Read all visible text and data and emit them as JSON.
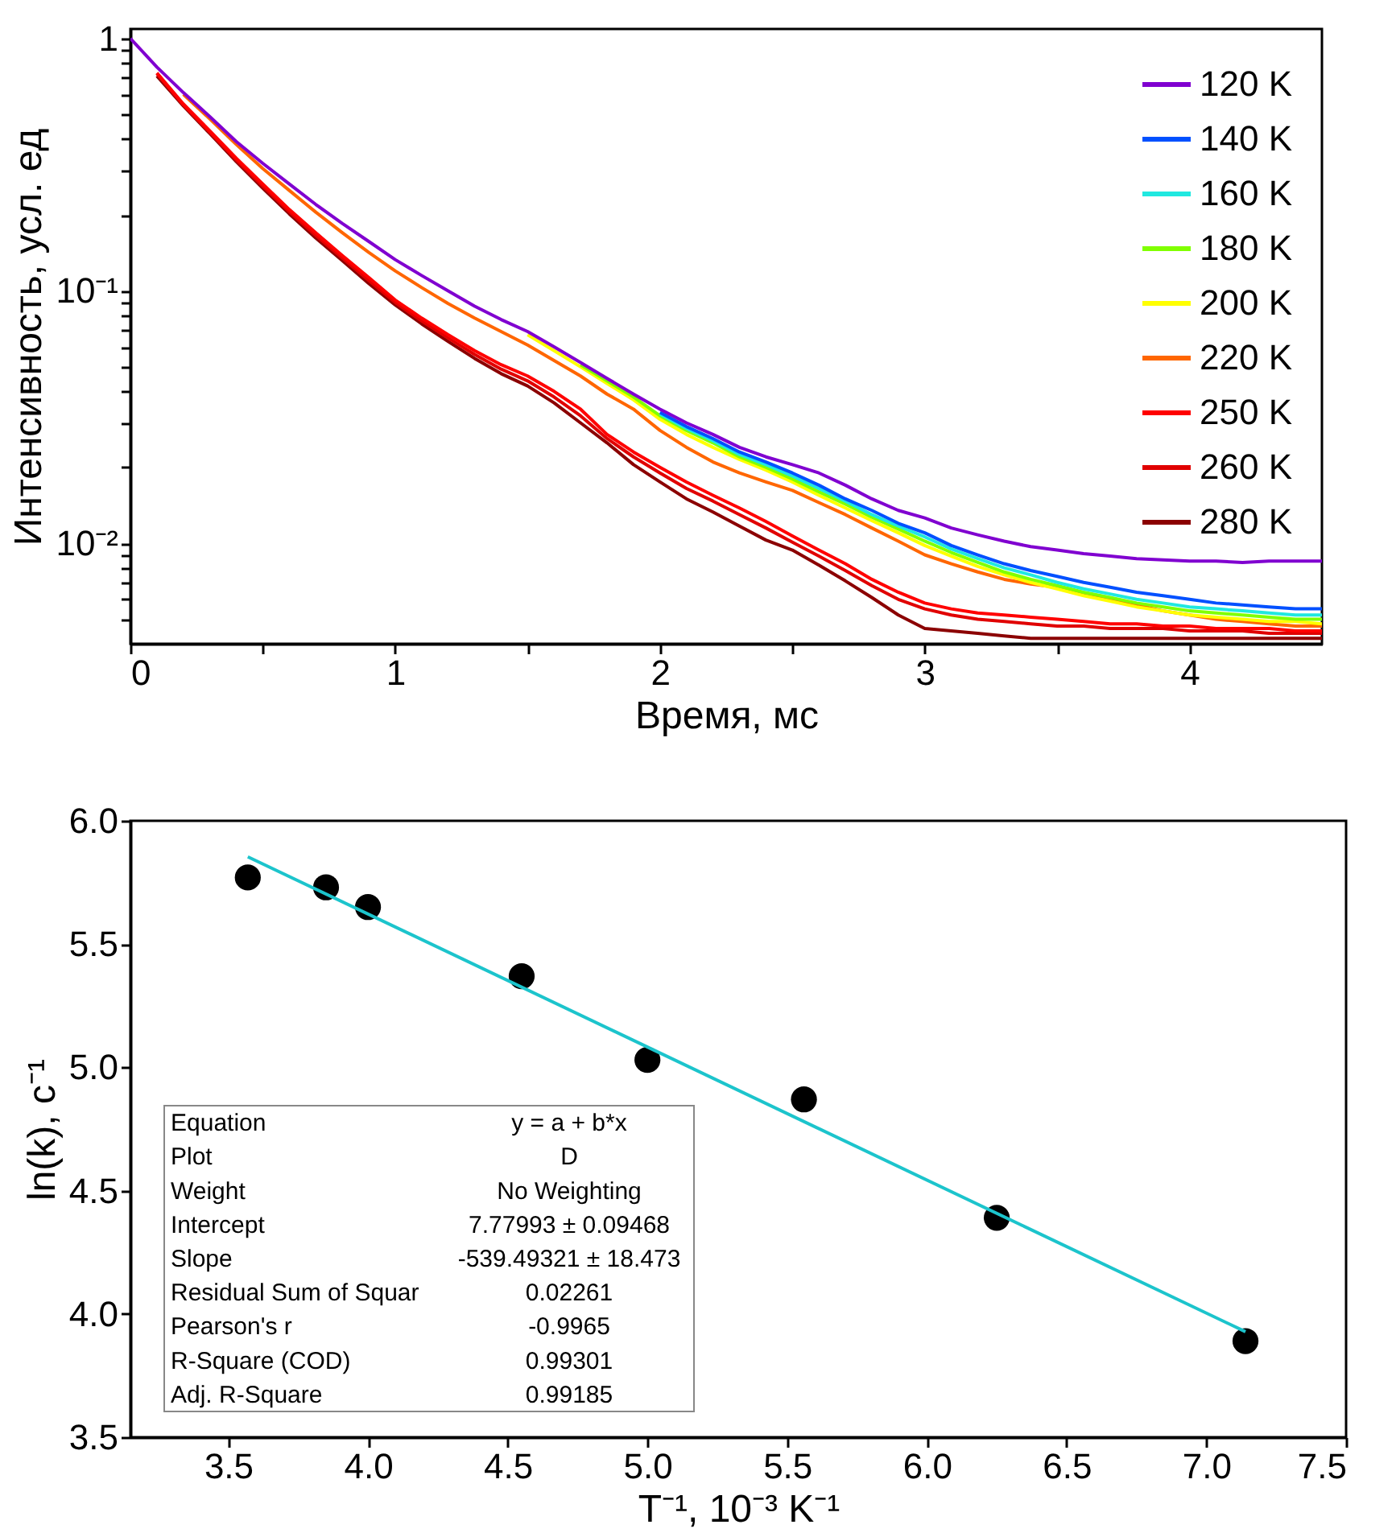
{
  "chart_data": [
    {
      "type": "line",
      "xlabel": "Время, мс",
      "ylabel": "Интенсивность, усл. ед",
      "log": "y",
      "legend": "top right",
      "grid": false,
      "xlim": [
        0,
        4.5
      ],
      "xticks": [
        0,
        1,
        2,
        3,
        4,
        {
          "value": 0.5,
          "label": null
        },
        {
          "value": 1.5,
          "label": null
        },
        {
          "value": 2.5,
          "label": null
        },
        {
          "value": 3.5,
          "label": null
        }
      ],
      "ylim": [
        0.004,
        1.09
      ],
      "yticks": [
        1,
        {
          "value": 0.1,
          "label": "10⁻¹"
        },
        {
          "value": 0.01,
          "label": "10⁻²"
        },
        {
          "value": 0.2,
          "label": null
        },
        {
          "value": 0.3,
          "label": null
        },
        {
          "value": 0.4,
          "label": null
        },
        {
          "value": 0.5,
          "label": null
        },
        {
          "value": 0.6,
          "label": null
        },
        {
          "value": 0.7,
          "label": null
        },
        {
          "value": 0.8,
          "label": null
        },
        {
          "value": 0.9,
          "label": null
        },
        {
          "value": 0.02,
          "label": null
        },
        {
          "value": 0.03,
          "label": null
        },
        {
          "value": 0.04,
          "label": null
        },
        {
          "value": 0.05,
          "label": null
        },
        {
          "value": 0.06,
          "label": null
        },
        {
          "value": 0.07,
          "label": null
        },
        {
          "value": 0.08,
          "label": null
        },
        {
          "value": 0.09,
          "label": null
        },
        {
          "value": 0.005,
          "label": null
        },
        {
          "value": 0.006,
          "label": null
        },
        {
          "value": 0.007,
          "label": null
        },
        {
          "value": 0.008,
          "label": null
        },
        {
          "value": 0.009,
          "label": null
        }
      ],
      "x": [
        0,
        0.1,
        0.2,
        0.3,
        0.4,
        0.5,
        0.6,
        0.7,
        0.8,
        0.9,
        1.0,
        1.1,
        1.2,
        1.3,
        1.4,
        1.5,
        1.6,
        1.7,
        1.8,
        1.9,
        2.0,
        2.1,
        2.2,
        2.3,
        2.4,
        2.5,
        2.6,
        2.7,
        2.8,
        2.9,
        3.0,
        3.1,
        3.2,
        3.3,
        3.4,
        3.5,
        3.6,
        3.7,
        3.8,
        3.9,
        4.0,
        4.1,
        4.2,
        4.3,
        4.4,
        4.5
      ],
      "series": [
        {
          "name": "120 K",
          "color": "#8000d0",
          "values": [
            1.0,
            0.77,
            0.61,
            0.49,
            0.39,
            0.32,
            0.265,
            0.22,
            0.185,
            0.157,
            0.133,
            0.115,
            0.1,
            0.087,
            0.077,
            0.069,
            0.06,
            0.052,
            0.045,
            0.039,
            0.034,
            0.03,
            0.027,
            0.024,
            0.022,
            0.0205,
            0.019,
            0.017,
            0.015,
            0.0135,
            0.0126,
            0.0115,
            0.0108,
            0.0102,
            0.0097,
            0.0094,
            0.0091,
            0.0089,
            0.0087,
            0.0086,
            0.0085,
            0.0085,
            0.0084,
            0.0085,
            0.0085,
            0.0085
          ]
        },
        {
          "name": "140 K",
          "color": "#0050ff",
          "values": [
            null,
            null,
            null,
            null,
            null,
            null,
            null,
            null,
            null,
            null,
            null,
            null,
            null,
            null,
            null,
            null,
            null,
            null,
            null,
            null,
            0.033,
            0.029,
            0.026,
            0.023,
            0.021,
            0.019,
            0.017,
            0.015,
            0.0135,
            0.012,
            0.011,
            0.0098,
            0.009,
            0.0083,
            0.0078,
            0.0074,
            0.007,
            0.0067,
            0.0064,
            0.0062,
            0.006,
            0.0058,
            0.0057,
            0.0056,
            0.0055,
            0.0055
          ]
        },
        {
          "name": "160 K",
          "color": "#20e8e0",
          "values": [
            null,
            null,
            null,
            null,
            null,
            null,
            null,
            null,
            null,
            null,
            null,
            null,
            null,
            null,
            null,
            null,
            null,
            null,
            null,
            null,
            0.0325,
            0.0285,
            0.0255,
            0.0225,
            0.0205,
            0.0185,
            0.0165,
            0.0147,
            0.013,
            0.0117,
            0.0106,
            0.0095,
            0.0087,
            0.008,
            0.0075,
            0.007,
            0.0066,
            0.0063,
            0.006,
            0.0058,
            0.0056,
            0.0055,
            0.0054,
            0.0053,
            0.0052,
            0.0052
          ]
        },
        {
          "name": "180 K",
          "color": "#80ff00",
          "values": [
            null,
            null,
            null,
            null,
            null,
            null,
            null,
            null,
            null,
            null,
            null,
            null,
            null,
            null,
            null,
            null,
            null,
            0.051,
            0.044,
            0.038,
            0.032,
            0.028,
            0.025,
            0.022,
            0.02,
            0.018,
            0.016,
            0.0143,
            0.0127,
            0.0114,
            0.0102,
            0.0092,
            0.0084,
            0.0077,
            0.0072,
            0.0068,
            0.0064,
            0.0061,
            0.0058,
            0.0056,
            0.0054,
            0.0053,
            0.0052,
            0.0051,
            0.005,
            0.005
          ]
        },
        {
          "name": "200 K",
          "color": "#ffff00",
          "values": [
            null,
            null,
            null,
            null,
            null,
            null,
            null,
            null,
            null,
            null,
            null,
            null,
            null,
            null,
            null,
            0.067,
            0.058,
            0.05,
            0.043,
            0.037,
            0.031,
            0.027,
            0.024,
            0.0215,
            0.0195,
            0.0175,
            0.0155,
            0.0138,
            0.0123,
            0.011,
            0.0098,
            0.0089,
            0.0081,
            0.0075,
            0.007,
            0.0066,
            0.0062,
            0.0059,
            0.0056,
            0.0054,
            0.0052,
            0.0051,
            0.005,
            0.0049,
            0.0049,
            0.0048
          ]
        },
        {
          "name": "220 K",
          "color": "#ff6600",
          "values": [
            null,
            null,
            0.6,
            0.48,
            0.38,
            0.305,
            0.25,
            0.205,
            0.17,
            0.142,
            0.12,
            0.103,
            0.089,
            0.078,
            0.069,
            0.061,
            0.053,
            0.046,
            0.039,
            0.034,
            0.028,
            0.024,
            0.021,
            0.019,
            0.0175,
            0.0162,
            0.0145,
            0.013,
            0.0115,
            0.0102,
            0.009,
            0.0083,
            0.0077,
            0.0072,
            0.0069,
            0.0067,
            0.0063,
            0.006,
            0.0057,
            0.0054,
            0.0052,
            0.005,
            0.0049,
            0.0048,
            0.0047,
            0.0047
          ]
        },
        {
          "name": "250 K",
          "color": "#ff0000",
          "values": [
            null,
            0.73,
            0.55,
            0.43,
            0.335,
            0.265,
            0.21,
            0.17,
            0.138,
            0.113,
            0.092,
            0.078,
            0.067,
            0.058,
            0.051,
            0.046,
            0.04,
            0.034,
            0.027,
            0.023,
            0.02,
            0.0175,
            0.0155,
            0.0138,
            0.0122,
            0.0107,
            0.0094,
            0.0083,
            0.0072,
            0.0064,
            0.0058,
            0.0055,
            0.0053,
            0.0052,
            0.0051,
            0.005,
            0.0049,
            0.0048,
            0.0048,
            0.0047,
            0.0047,
            0.0046,
            0.0046,
            0.0046,
            0.0045,
            0.0045
          ]
        },
        {
          "name": "260 K",
          "color": "#e00000",
          "values": [
            null,
            0.725,
            0.545,
            0.425,
            0.33,
            0.26,
            0.206,
            0.166,
            0.135,
            0.11,
            0.09,
            0.076,
            0.065,
            0.056,
            0.049,
            0.044,
            0.038,
            0.032,
            0.026,
            0.022,
            0.019,
            0.0165,
            0.0147,
            0.013,
            0.0115,
            0.0101,
            0.0089,
            0.0078,
            0.0068,
            0.006,
            0.0055,
            0.0052,
            0.005,
            0.0049,
            0.0048,
            0.0047,
            0.0047,
            0.0046,
            0.0046,
            0.0046,
            0.0045,
            0.0045,
            0.0045,
            0.0044,
            0.0044,
            0.0044
          ]
        },
        {
          "name": "280 K",
          "color": "#8b0000",
          "values": [
            null,
            0.71,
            0.54,
            0.42,
            0.325,
            0.255,
            0.202,
            0.162,
            0.132,
            0.107,
            0.088,
            0.074,
            0.063,
            0.054,
            0.047,
            0.042,
            0.036,
            0.03,
            0.025,
            0.0205,
            0.0175,
            0.015,
            0.0133,
            0.0117,
            0.0103,
            0.0094,
            0.0082,
            0.0071,
            0.0061,
            0.0052,
            0.0046,
            0.0045,
            0.0044,
            0.0043,
            0.0042,
            0.0042,
            0.0042,
            0.0042,
            0.0042,
            0.0042,
            0.0042,
            0.0042,
            0.0042,
            0.0042,
            0.0042,
            0.0042
          ]
        }
      ]
    },
    {
      "type": "scatter",
      "xlabel": "T⁻¹, 10⁻³ K⁻¹",
      "ylabel": "ln(k), c⁻¹",
      "legend": false,
      "grid": false,
      "xlim": [
        3.15,
        7.5
      ],
      "xticks": [
        3.5,
        {
          "value": 4,
          "label": "4.0"
        },
        4.5,
        {
          "value": 5,
          "label": "5.0"
        },
        5.5,
        {
          "value": 6,
          "label": "6.0"
        },
        6.5,
        {
          "value": 7,
          "label": "7.0"
        },
        7.5
      ],
      "ylim": [
        3.5,
        6.0
      ],
      "yticks": [
        3.5,
        {
          "value": 4,
          "label": "4.0"
        },
        4.5,
        {
          "value": 5,
          "label": "5.0"
        },
        5.5,
        {
          "value": 6,
          "label": "6.0"
        }
      ],
      "series": [
        {
          "type": "scatter",
          "marker": "circle",
          "color": "#000000",
          "x": [
            3.57,
            3.85,
            4.0,
            4.55,
            5.0,
            5.56,
            6.25,
            7.14
          ],
          "values": [
            5.77,
            5.73,
            5.65,
            5.37,
            5.03,
            4.87,
            4.39,
            3.89
          ]
        },
        {
          "type": "line",
          "color": "#1cc4cc",
          "x": [
            3.57,
            7.14
          ],
          "values": [
            5.854,
            3.928
          ]
        }
      ],
      "annotations": [
        "Equation",
        "y = a + b*x",
        "Plot",
        "D",
        "Weight",
        "No Weighting",
        "Intercept",
        "7.77993 ± 0.09468",
        "Slope",
        "-539.49321 ± 18.473",
        "Residual Sum of Squar",
        "0.02261",
        "Pearson's r",
        "-0.9965",
        "R-Square (COD)",
        "0.99301",
        "Adj. R-Square",
        "0.99185"
      ]
    }
  ]
}
